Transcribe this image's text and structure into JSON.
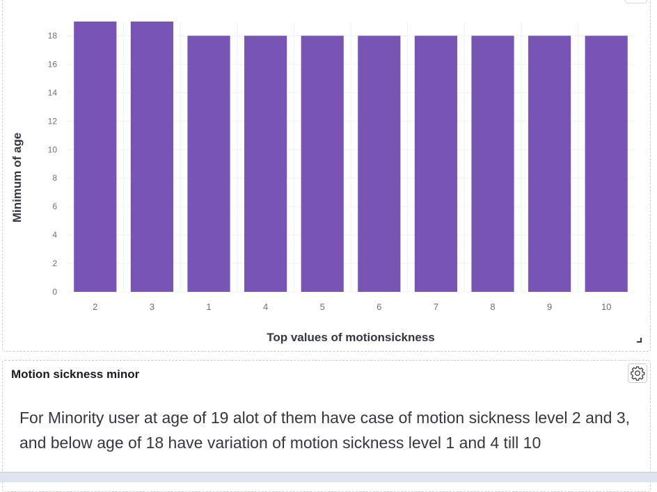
{
  "chart_panel": {
    "chart_data": {
      "type": "bar",
      "categories": [
        "2",
        "3",
        "1",
        "4",
        "5",
        "6",
        "7",
        "8",
        "9",
        "10"
      ],
      "values": [
        19,
        19,
        18,
        18,
        18,
        18,
        18,
        18,
        18,
        18
      ],
      "xlabel": "Top values of motionsickness",
      "ylabel": "Minimum of age",
      "ylim": [
        0,
        19
      ],
      "yticks": [
        0,
        2,
        4,
        6,
        8,
        10,
        12,
        14,
        16,
        18
      ],
      "grid": true,
      "bar_color": "#7854b4"
    }
  },
  "note_panel": {
    "title": "Motion sickness minor",
    "text": "For Minority user at age of 19 alot of them have case of motion sickness level 2 and 3, and below age of 18 have variation of motion sickness level 1 and 4 till 10",
    "settings_icon": "gear-icon"
  }
}
